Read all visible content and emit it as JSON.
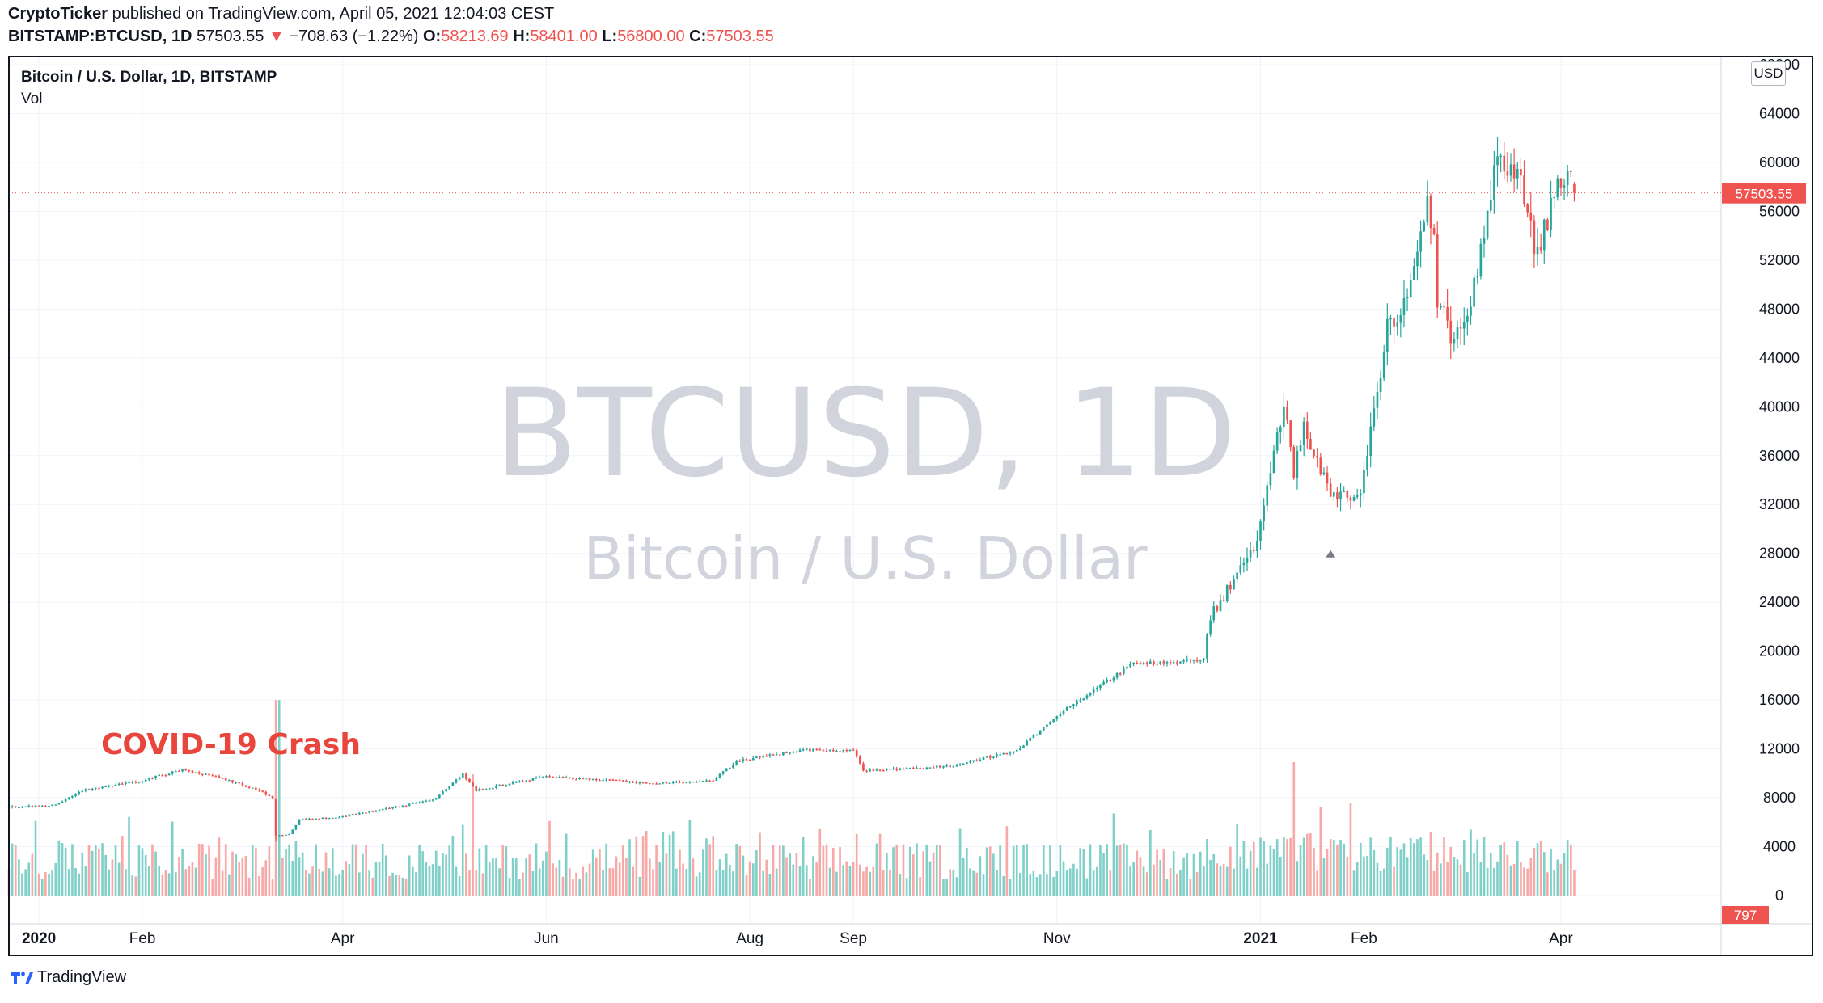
{
  "header": {
    "publisher": "CryptoTicker",
    "published_text": " published on TradingView.com, April 05, 2021 12:04:03 CEST",
    "symbol": "BITSTAMP:BTCUSD, 1D",
    "last": "57503.55",
    "change": "−708.63 (−1.22%)",
    "o_label": "O:",
    "o_value": "58213.69",
    "h_label": "H:",
    "h_value": "58401.00",
    "l_label": "L:",
    "l_value": "56800.00",
    "c_label": "C:",
    "c_value": "57503.55"
  },
  "legend": {
    "title": "Bitcoin / U.S. Dollar, 1D, BITSTAMP",
    "vol": "Vol"
  },
  "watermark": {
    "line1": "BTCUSD, 1D",
    "line2": "Bitcoin / U.S. Dollar"
  },
  "annotation": "COVID-19 Crash",
  "currency": "USD",
  "price_tag": "57503.55",
  "vol_tag": "797",
  "footer": {
    "brand": "TradingView"
  },
  "colors": {
    "up": "#26a69a",
    "down": "#ef5350",
    "vol_up": "#7fd0c8",
    "vol_down": "#f7a9a7",
    "watermark": "#d1d4dc"
  },
  "chart_data": {
    "type": "candlestick",
    "title": "Bitcoin / U.S. Dollar, 1D, BITSTAMP",
    "ylim": [
      0,
      68000
    ],
    "y_ticks": [
      0,
      4000,
      8000,
      12000,
      16000,
      20000,
      24000,
      28000,
      32000,
      36000,
      40000,
      44000,
      48000,
      52000,
      56000,
      60000,
      64000,
      68000
    ],
    "x_ticks": [
      {
        "label": "2020",
        "date": "2020-01-01",
        "bold": true
      },
      {
        "label": "Feb",
        "date": "2020-02-01",
        "bold": false
      },
      {
        "label": "Apr",
        "date": "2020-04-01",
        "bold": false
      },
      {
        "label": "Jun",
        "date": "2020-06-01",
        "bold": false
      },
      {
        "label": "Aug",
        "date": "2020-08-01",
        "bold": false
      },
      {
        "label": "Sep",
        "date": "2020-09-01",
        "bold": false
      },
      {
        "label": "Nov",
        "date": "2020-11-01",
        "bold": false
      },
      {
        "label": "2021",
        "date": "2021-01-01",
        "bold": true
      },
      {
        "label": "Feb",
        "date": "2021-02-01",
        "bold": false
      },
      {
        "label": "Apr",
        "date": "2021-04-01",
        "bold": false
      }
    ],
    "x_range": [
      "2019-12-23",
      "2021-05-19"
    ],
    "first_date": "2019-12-23",
    "last_close": 57503.55,
    "close_keypoints": [
      [
        "2019-12-23",
        7250
      ],
      [
        "2020-01-06",
        7400
      ],
      [
        "2020-01-14",
        8600
      ],
      [
        "2020-01-31",
        9350
      ],
      [
        "2020-02-13",
        10300
      ],
      [
        "2020-02-25",
        9600
      ],
      [
        "2020-03-08",
        8500
      ],
      [
        "2020-03-11",
        7900
      ],
      [
        "2020-03-12",
        4900
      ],
      [
        "2020-03-16",
        5000
      ],
      [
        "2020-03-19",
        6200
      ],
      [
        "2020-03-31",
        6450
      ],
      [
        "2020-04-10",
        6900
      ],
      [
        "2020-04-28",
        7800
      ],
      [
        "2020-05-07",
        9900
      ],
      [
        "2020-05-11",
        8600
      ],
      [
        "2020-06-01",
        9750
      ],
      [
        "2020-07-01",
        9200
      ],
      [
        "2020-07-21",
        9400
      ],
      [
        "2020-07-28",
        11000
      ],
      [
        "2020-08-17",
        11900
      ],
      [
        "2020-09-01",
        11900
      ],
      [
        "2020-09-04",
        10200
      ],
      [
        "2020-10-01",
        10600
      ],
      [
        "2020-10-20",
        11900
      ],
      [
        "2020-11-05",
        15500
      ],
      [
        "2020-11-24",
        19000
      ],
      [
        "2020-12-01",
        19000
      ],
      [
        "2020-12-15",
        19300
      ],
      [
        "2020-12-17",
        22800
      ],
      [
        "2020-12-31",
        29000
      ],
      [
        "2021-01-08",
        40500
      ],
      [
        "2021-01-11",
        34500
      ],
      [
        "2021-01-14",
        38500
      ],
      [
        "2021-01-22",
        33000
      ],
      [
        "2021-01-26",
        32500
      ],
      [
        "2021-01-31",
        33300
      ],
      [
        "2021-02-08",
        46300
      ],
      [
        "2021-02-14",
        48800
      ],
      [
        "2021-02-20",
        57000
      ],
      [
        "2021-02-22",
        54000
      ],
      [
        "2021-02-23",
        48800
      ],
      [
        "2021-02-28",
        45200
      ],
      [
        "2021-03-05",
        48500
      ],
      [
        "2021-03-13",
        61000
      ],
      [
        "2021-03-20",
        58000
      ],
      [
        "2021-03-25",
        52300
      ],
      [
        "2021-03-31",
        58800
      ],
      [
        "2021-04-04",
        58200
      ],
      [
        "2021-04-05",
        57503.55
      ]
    ],
    "volume_ylim": [
      0,
      16000
    ],
    "volume_scale_note": "volume axis shares price scale 0-16000 region"
  }
}
